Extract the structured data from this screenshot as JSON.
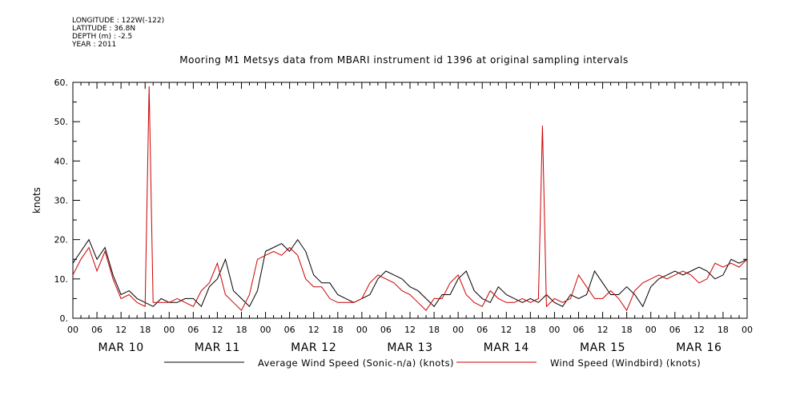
{
  "header": {
    "longitude": "LONGITUDE : 122W(-122)",
    "latitude": "LATITUDE : 36.8N",
    "depth": "DEPTH (m) : -2.5",
    "year": "YEAR : 2011"
  },
  "chart_data": {
    "type": "line",
    "title": "Mooring M1 Metsys data from MBARI instrument id 1396 at original sampling intervals",
    "ylabel": "knots",
    "xlabel": "",
    "ylim": [
      0,
      60
    ],
    "yticks": [
      0,
      10,
      20,
      30,
      40,
      50,
      60
    ],
    "ytick_labels": [
      "0.",
      "10.",
      "20.",
      "30.",
      "40.",
      "50.",
      "60."
    ],
    "xlim_hours": [
      0,
      168
    ],
    "x_tick_labels": [
      "00",
      "06",
      "12",
      "18",
      "00",
      "06",
      "12",
      "18",
      "00",
      "06",
      "12",
      "18",
      "00",
      "06",
      "12",
      "18",
      "00",
      "06",
      "12",
      "18",
      "00",
      "06",
      "12",
      "18",
      "00",
      "06",
      "12",
      "18",
      "00"
    ],
    "days": [
      "MAR 10",
      "MAR 11",
      "MAR 12",
      "MAR 13",
      "MAR 14",
      "MAR 15",
      "MAR 16"
    ],
    "grid": false,
    "legend_position": "bottom",
    "series": [
      {
        "name": "Average Wind Speed (Sonic-n/a) (knots)",
        "color": "#000000",
        "x": [
          0,
          2,
          4,
          6,
          8,
          10,
          12,
          14,
          16,
          18,
          20,
          22,
          24,
          26,
          28,
          30,
          32,
          34,
          36,
          38,
          40,
          42,
          44,
          46,
          48,
          50,
          52,
          54,
          56,
          58,
          60,
          62,
          64,
          66,
          68,
          70,
          72,
          74,
          76,
          78,
          80,
          82,
          84,
          86,
          88,
          90,
          92,
          94,
          96,
          98,
          100,
          102,
          104,
          106,
          108,
          110,
          112,
          114,
          116,
          118,
          120,
          122,
          124,
          126,
          128,
          130,
          132,
          134,
          136,
          138,
          140,
          142,
          144,
          146,
          148,
          150,
          152,
          154,
          156,
          158,
          160,
          162,
          164,
          166,
          168
        ],
        "y": [
          14,
          17,
          20,
          15,
          18,
          11,
          6,
          7,
          5,
          4,
          3,
          5,
          4,
          4,
          5,
          5,
          3,
          8,
          10,
          15,
          7,
          5,
          3,
          7,
          17,
          18,
          19,
          17,
          20,
          17,
          11,
          9,
          9,
          6,
          5,
          4,
          5,
          6,
          10,
          12,
          11,
          10,
          8,
          7,
          5,
          3,
          6,
          6,
          10,
          12,
          7,
          5,
          4,
          8,
          6,
          5,
          4,
          5,
          4,
          6,
          4,
          3,
          6,
          5,
          6,
          12,
          9,
          6,
          6,
          8,
          6,
          3,
          8,
          10,
          11,
          12,
          11,
          12,
          13,
          12,
          10,
          11,
          15,
          14,
          15
        ]
      },
      {
        "name": "Wind Speed (Windbird) (knots)",
        "color": "#cc0000",
        "x": [
          0,
          2,
          4,
          6,
          8,
          10,
          12,
          14,
          16,
          18,
          19,
          20,
          22,
          24,
          26,
          28,
          30,
          32,
          34,
          36,
          38,
          40,
          42,
          44,
          46,
          48,
          50,
          52,
          54,
          56,
          58,
          60,
          62,
          64,
          66,
          68,
          70,
          72,
          74,
          76,
          78,
          80,
          82,
          84,
          86,
          88,
          90,
          92,
          94,
          96,
          98,
          100,
          102,
          104,
          106,
          108,
          110,
          112,
          114,
          116,
          117,
          118,
          120,
          122,
          124,
          126,
          128,
          130,
          132,
          134,
          136,
          138,
          140,
          142,
          144,
          146,
          148,
          150,
          152,
          154,
          156,
          158,
          160,
          162,
          164,
          166,
          168
        ],
        "y": [
          11,
          15,
          18,
          12,
          17,
          10,
          5,
          6,
          4,
          3,
          59,
          4,
          4,
          4,
          5,
          4,
          3,
          7,
          9,
          14,
          6,
          4,
          2,
          6,
          15,
          16,
          17,
          16,
          18,
          16,
          10,
          8,
          8,
          5,
          4,
          4,
          4,
          5,
          9,
          11,
          10,
          9,
          7,
          6,
          4,
          2,
          5,
          5,
          9,
          11,
          6,
          4,
          3,
          7,
          5,
          4,
          4,
          5,
          4,
          5,
          49,
          3,
          5,
          4,
          5,
          11,
          8,
          5,
          5,
          7,
          5,
          2,
          7,
          9,
          10,
          11,
          10,
          11,
          12,
          11,
          9,
          10,
          14,
          13,
          14,
          13,
          15
        ]
      }
    ]
  }
}
